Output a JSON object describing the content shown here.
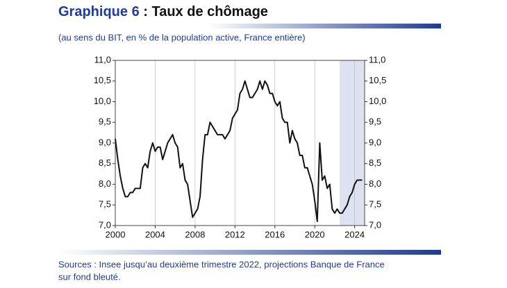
{
  "chart_data": {
    "type": "line",
    "title_number": "Graphique 6",
    "title": " : Taux de chômage",
    "subtitle": "(au sens du BIT, en % de la population active, France entière)",
    "notes": [
      "Sources : Insee jusqu’au deuxième trimestre 2022, projections Banque de France",
      "sur fond bleuté."
    ],
    "xlim": [
      2000,
      2025
    ],
    "xticks": [
      2000,
      2004,
      2008,
      2012,
      2016,
      2020,
      2024
    ],
    "ylim": [
      7,
      11
    ],
    "yticks": [
      {
        "value": 7,
        "label": "7,0"
      },
      {
        "value": 7.5,
        "label": "7,5"
      },
      {
        "value": 8,
        "label": "8,0"
      },
      {
        "value": 8.5,
        "label": "8,5"
      },
      {
        "value": 9,
        "label": "9,0"
      },
      {
        "value": 9.5,
        "label": "9,5"
      },
      {
        "value": 10,
        "label": "10,0"
      },
      {
        "value": 10.5,
        "label": "10,5"
      },
      {
        "value": 11,
        "label": "11,0"
      }
    ],
    "grid": true,
    "projection_start": 2022.5,
    "projection_color": "#dde1f2",
    "x": [
      2000,
      2000.25,
      2000.5,
      2000.75,
      2001,
      2001.25,
      2001.5,
      2001.75,
      2002,
      2002.25,
      2002.5,
      2002.75,
      2003,
      2003.25,
      2003.5,
      2003.75,
      2004,
      2004.25,
      2004.5,
      2004.75,
      2005,
      2005.25,
      2005.5,
      2005.75,
      2006,
      2006.25,
      2006.5,
      2006.75,
      2007,
      2007.25,
      2007.5,
      2007.75,
      2008,
      2008.25,
      2008.5,
      2008.75,
      2009,
      2009.25,
      2009.5,
      2009.75,
      2010,
      2010.25,
      2010.5,
      2010.75,
      2011,
      2011.25,
      2011.5,
      2011.75,
      2012,
      2012.25,
      2012.5,
      2012.75,
      2013,
      2013.25,
      2013.5,
      2013.75,
      2014,
      2014.25,
      2014.5,
      2014.75,
      2015,
      2015.25,
      2015.5,
      2015.75,
      2016,
      2016.25,
      2016.5,
      2016.75,
      2017,
      2017.25,
      2017.5,
      2017.75,
      2018,
      2018.25,
      2018.5,
      2018.75,
      2019,
      2019.25,
      2019.5,
      2019.75,
      2020,
      2020.25,
      2020.5,
      2020.75,
      2021,
      2021.25,
      2021.5,
      2021.75,
      2022,
      2022.25,
      2022.5,
      2022.75,
      2023,
      2023.25,
      2023.5,
      2023.75,
      2024,
      2024.25,
      2024.5,
      2024.75
    ],
    "series": [
      {
        "name": "Taux de chômage",
        "color": "#111111",
        "values": [
          9.1,
          8.6,
          8.2,
          7.9,
          7.7,
          7.7,
          7.8,
          7.8,
          7.9,
          7.9,
          7.9,
          8.4,
          8.5,
          8.4,
          8.8,
          9.0,
          8.8,
          8.9,
          8.9,
          8.6,
          8.8,
          9.0,
          9.1,
          9.2,
          9.0,
          8.9,
          8.4,
          8.5,
          8.1,
          8.0,
          7.6,
          7.2,
          7.3,
          7.4,
          7.7,
          8.6,
          9.2,
          9.2,
          9.5,
          9.4,
          9.3,
          9.2,
          9.2,
          9.2,
          9.1,
          9.2,
          9.3,
          9.6,
          9.7,
          9.8,
          10.2,
          10.3,
          10.5,
          10.3,
          10.1,
          10.1,
          10.2,
          10.3,
          10.5,
          10.3,
          10.5,
          10.4,
          10.2,
          10.2,
          10.0,
          9.9,
          10.0,
          9.6,
          9.5,
          9.5,
          9.0,
          9.3,
          9.1,
          9.0,
          8.7,
          8.7,
          8.4,
          8.4,
          8.2,
          8.0,
          7.6,
          7.1,
          9.0,
          8.1,
          8.2,
          7.9,
          8.0,
          7.4,
          7.3,
          7.4,
          7.3,
          7.3,
          7.4,
          7.5,
          7.7,
          7.8,
          8.0,
          8.1,
          8.1,
          8.1
        ]
      }
    ]
  }
}
